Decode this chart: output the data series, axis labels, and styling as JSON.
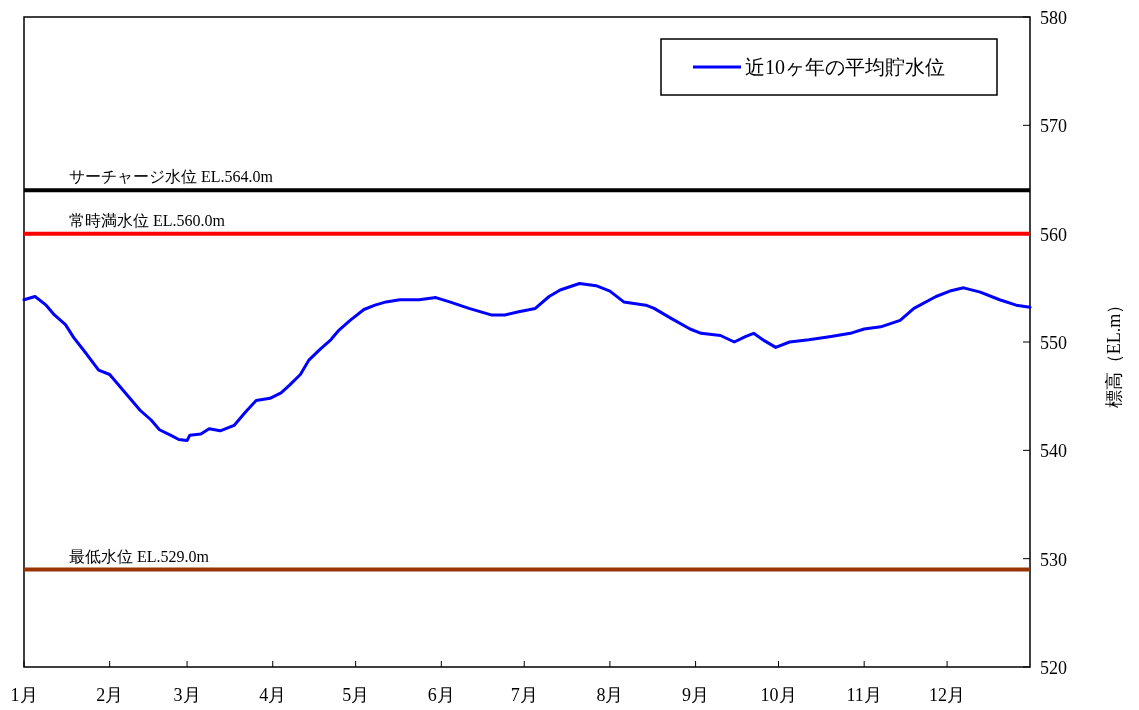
{
  "chart_data": {
    "type": "line",
    "ylabel": "標高（EL.m）",
    "x": [
      "--01-01",
      "--01-05",
      "--01-09",
      "--01-12",
      "--01-16",
      "--01-19",
      "--01-23",
      "--01-28",
      "--02-01",
      "--02-05",
      "--02-08",
      "--02-12",
      "--02-16",
      "--02-19",
      "--02-23",
      "--02-26",
      "--03-01",
      "--03-02",
      "--03-06",
      "--03-09",
      "--03-13",
      "--03-18",
      "--03-22",
      "--03-26",
      "--03-31",
      "--04-04",
      "--04-07",
      "--04-11",
      "--04-14",
      "--04-18",
      "--04-22",
      "--04-25",
      "--04-29",
      "--05-04",
      "--05-08",
      "--05-12",
      "--05-17",
      "--05-24",
      "--05-30",
      "--06-04",
      "--06-11",
      "--06-19",
      "--06-24",
      "--06-29",
      "--07-05",
      "--07-10",
      "--07-14",
      "--07-21",
      "--07-27",
      "--08-01",
      "--08-06",
      "--08-14",
      "--08-17",
      "--08-23",
      "--08-30",
      "--09-03",
      "--09-10",
      "--09-15",
      "--09-19",
      "--09-22",
      "--09-26",
      "--09-30",
      "--10-05",
      "--10-12",
      "--10-20",
      "--10-27",
      "--11-01",
      "--11-07",
      "--11-14",
      "--11-19",
      "--11-27",
      "--12-02",
      "--12-07",
      "--12-13",
      "--12-20",
      "--12-26",
      "--12-31"
    ],
    "series": [
      {
        "name": "近10ヶ年の平均貯水位",
        "color": "#0000ff",
        "values": [
          553.9,
          554.2,
          553.4,
          552.5,
          551.6,
          550.4,
          549.1,
          547.4,
          547.0,
          545.8,
          544.9,
          543.7,
          542.8,
          541.9,
          541.4,
          541.0,
          540.9,
          541.4,
          541.5,
          542.0,
          541.8,
          542.3,
          543.5,
          544.6,
          544.8,
          545.3,
          546.0,
          547.0,
          548.3,
          549.3,
          550.2,
          551.1,
          552.0,
          553.0,
          553.4,
          553.7,
          553.9,
          553.9,
          554.1,
          553.7,
          553.1,
          552.5,
          552.5,
          552.8,
          553.1,
          554.2,
          554.8,
          555.4,
          555.2,
          554.7,
          553.7,
          553.4,
          553.1,
          552.2,
          551.2,
          550.8,
          550.6,
          550.0,
          550.5,
          550.8,
          550.1,
          549.5,
          550.0,
          550.2,
          550.5,
          550.8,
          551.2,
          551.4,
          552.0,
          553.1,
          554.2,
          554.7,
          555.0,
          554.6,
          553.9,
          553.4,
          553.2
        ]
      }
    ],
    "xlim": [
      "--01-01",
      "--12-31"
    ],
    "xticks": [
      {
        "value": "--01-01",
        "label": "1月"
      },
      {
        "value": "--02-01",
        "label": "2月"
      },
      {
        "value": "--03-01",
        "label": "3月"
      },
      {
        "value": "--04-01",
        "label": "4月"
      },
      {
        "value": "--05-01",
        "label": "5月"
      },
      {
        "value": "--06-01",
        "label": "6月"
      },
      {
        "value": "--07-01",
        "label": "7月"
      },
      {
        "value": "--08-01",
        "label": "8月"
      },
      {
        "value": "--09-01",
        "label": "9月"
      },
      {
        "value": "--10-01",
        "label": "10月"
      },
      {
        "value": "--11-01",
        "label": "11月"
      },
      {
        "value": "--12-01",
        "label": "12月"
      }
    ],
    "ylim": [
      520,
      580
    ],
    "yticks": [
      520,
      530,
      540,
      550,
      560,
      570,
      580
    ],
    "ref_lines": [
      {
        "axis": "y",
        "value": 564,
        "label": "サーチャージ水位 EL.564.0m",
        "color": "#000000"
      },
      {
        "axis": "y",
        "value": 560,
        "label": "常時満水位 EL.560.0m",
        "color": "#ff0000"
      },
      {
        "axis": "y",
        "value": 529,
        "label": "最低水位 EL.529.0m",
        "color": "#993300"
      }
    ],
    "legend": "top right",
    "grid": false,
    "marker": "none",
    "line_style": "solid"
  }
}
